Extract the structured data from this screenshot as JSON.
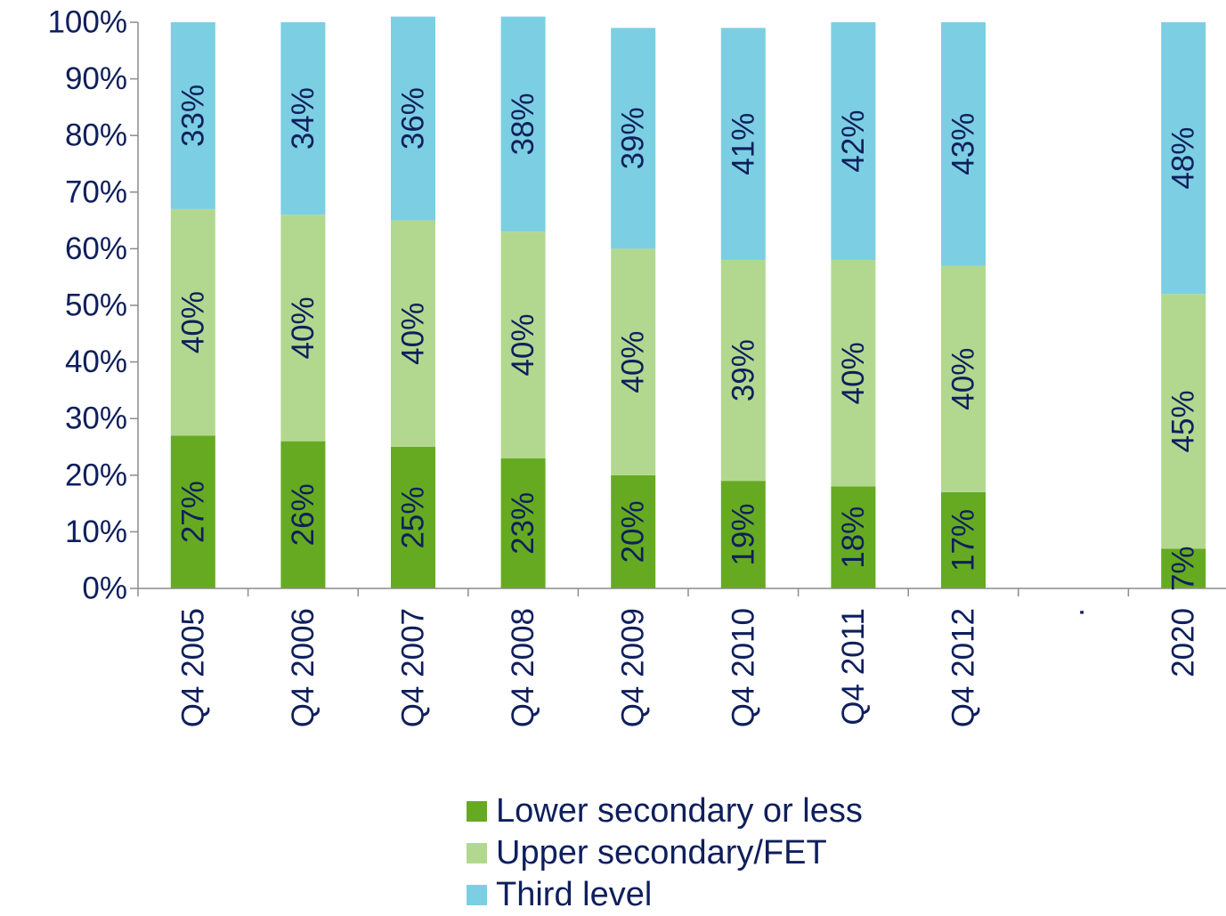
{
  "chart_data": {
    "type": "bar",
    "stacked": true,
    "orientation": "vertical",
    "categories": [
      "Q4 2005",
      "Q4 2006",
      "Q4 2007",
      "Q4 2008",
      "Q4 2009",
      "Q4 2010",
      "Q4 2011",
      "Q4 2012",
      ".",
      "2020"
    ],
    "series": [
      {
        "name": "Lower secondary or less",
        "color": "#66aa22",
        "values": [
          27,
          26,
          25,
          23,
          20,
          19,
          18,
          17,
          null,
          7
        ],
        "labels": [
          "27%",
          "26%",
          "25%",
          "23%",
          "20%",
          "19%",
          "18%",
          "17%",
          "",
          "7%"
        ]
      },
      {
        "name": "Upper secondary/FET",
        "color": "#b2d88f",
        "values": [
          40,
          40,
          40,
          40,
          40,
          39,
          40,
          40,
          null,
          45
        ],
        "labels": [
          "40%",
          "40%",
          "40%",
          "40%",
          "40%",
          "39%",
          "40%",
          "40%",
          "",
          "45%"
        ]
      },
      {
        "name": "Third level",
        "color": "#7ccfe2",
        "values": [
          33,
          34,
          36,
          38,
          39,
          41,
          42,
          43,
          null,
          48
        ],
        "labels": [
          "33%",
          "34%",
          "36%",
          "38%",
          "39%",
          "41%",
          "42%",
          "43%",
          "",
          "48%"
        ]
      }
    ],
    "ylim": [
      0,
      100
    ],
    "yticks": [
      "0%",
      "10%",
      "20%",
      "30%",
      "40%",
      "50%",
      "60%",
      "70%",
      "80%",
      "90%",
      "100%"
    ],
    "title": "",
    "xlabel": "",
    "ylabel": "",
    "grid": false,
    "legend_position": "bottom"
  }
}
